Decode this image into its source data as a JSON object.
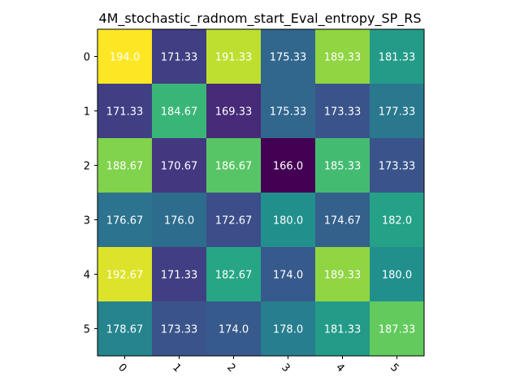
{
  "chart_data": {
    "type": "heatmap",
    "title": "4M_stochastic_radnom_start_Eval_entropy_SP_RS",
    "xlabel": "",
    "ylabel": "",
    "x_categories": [
      "0",
      "1",
      "2",
      "3",
      "4",
      "5"
    ],
    "y_categories": [
      "0",
      "1",
      "2",
      "3",
      "4",
      "5"
    ],
    "values": [
      [
        194.0,
        171.33,
        191.33,
        175.33,
        189.33,
        181.33
      ],
      [
        171.33,
        184.67,
        169.33,
        175.33,
        173.33,
        177.33
      ],
      [
        188.67,
        170.67,
        186.67,
        166.0,
        185.33,
        173.33
      ],
      [
        176.67,
        176.0,
        172.67,
        180.0,
        174.67,
        182.0
      ],
      [
        192.67,
        171.33,
        182.67,
        174.0,
        189.33,
        180.0
      ],
      [
        178.67,
        173.33,
        174.0,
        178.0,
        181.33,
        187.33
      ]
    ],
    "value_labels": [
      [
        "194.0",
        "171.33",
        "191.33",
        "175.33",
        "189.33",
        "181.33"
      ],
      [
        "171.33",
        "184.67",
        "169.33",
        "175.33",
        "173.33",
        "177.33"
      ],
      [
        "188.67",
        "170.67",
        "186.67",
        "166.0",
        "185.33",
        "173.33"
      ],
      [
        "176.67",
        "176.0",
        "172.67",
        "180.0",
        "174.67",
        "182.0"
      ],
      [
        "192.67",
        "171.33",
        "182.67",
        "174.0",
        "189.33",
        "180.0"
      ],
      [
        "178.67",
        "173.33",
        "174.0",
        "178.0",
        "181.33",
        "187.33"
      ]
    ],
    "colormap": "viridis",
    "value_range": [
      166.0,
      194.0
    ],
    "x_tick_rotation": 45,
    "grid": false,
    "legend": "none"
  }
}
